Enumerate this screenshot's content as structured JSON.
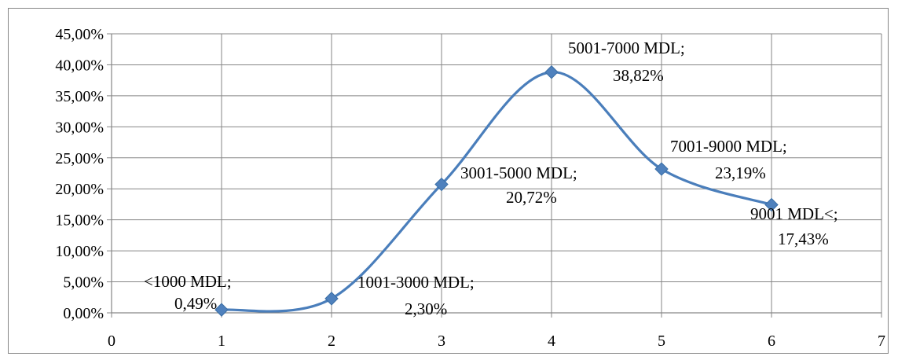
{
  "chart_data": {
    "type": "scatter",
    "smooth": true,
    "series": [
      {
        "x": [
          1,
          2,
          3,
          4,
          5,
          6
        ],
        "y": [
          0.49,
          2.3,
          20.72,
          38.82,
          23.19,
          17.43
        ],
        "labels": [
          {
            "line1": "<1000 MDL;",
            "line2": "0,49%"
          },
          {
            "line1": "1001-3000 MDL;",
            "line2": "2,30%"
          },
          {
            "line1": "3001-5000 MDL;",
            "line2": "20,72%"
          },
          {
            "line1": "5001-7000 MDL;",
            "line2": "38,82%"
          },
          {
            "line1": "7001-9000 MDL;",
            "line2": "23,19%"
          },
          {
            "line1": "9001 MDL<;",
            "line2": "17,43%"
          }
        ]
      }
    ],
    "xlim": [
      0,
      7
    ],
    "ylim": [
      0,
      45
    ],
    "x_ticks": [
      "0",
      "1",
      "2",
      "3",
      "4",
      "5",
      "6",
      "7"
    ],
    "y_ticks": [
      "0,00%",
      "5,00%",
      "10,00%",
      "15,00%",
      "20,00%",
      "25,00%",
      "30,00%",
      "35,00%",
      "40,00%",
      "45,00%"
    ],
    "grid": true,
    "legend": "none",
    "line_color": "#4a7ebb",
    "marker_color": "#4f81bd",
    "marker": "diamond"
  }
}
